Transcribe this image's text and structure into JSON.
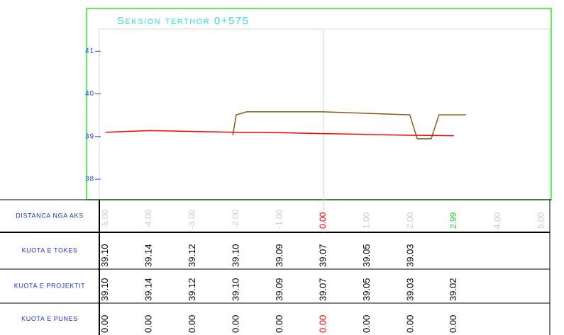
{
  "chart_data": {
    "type": "line",
    "title": "Seksion terthor 0+575",
    "xlim": [
      -5.14,
      5.19
    ],
    "ylim": [
      37.52,
      41.52
    ],
    "yticks": [
      38,
      39,
      40,
      41
    ],
    "xticks": [
      {
        "value": -5,
        "label": "-5.00"
      },
      {
        "value": -4,
        "label": "-4.00"
      },
      {
        "value": -3,
        "label": "-3.00"
      },
      {
        "value": -2,
        "label": "-2.00"
      },
      {
        "value": -1,
        "label": "-1.00"
      },
      {
        "value": 0,
        "label": "0.00"
      },
      {
        "value": 1,
        "label": "1.00"
      },
      {
        "value": 2,
        "label": "2.00"
      },
      {
        "value": 2.99,
        "label": "2.99"
      },
      {
        "value": 4,
        "label": "4.00"
      },
      {
        "value": 5,
        "label": "5.00"
      }
    ],
    "xtick_colors": [
      "#cccccc",
      "#cccccc",
      "#cccccc",
      "#cccccc",
      "#cccccc",
      "#ff0000",
      "#cccccc",
      "#cccccc",
      "#33cc33",
      "#cccccc",
      "#cccccc"
    ],
    "series": [
      {
        "color": "#8b5a14",
        "x": [
          -2.08,
          -2.0,
          -1.76,
          0,
          1.98,
          2.15,
          2.47,
          2.65,
          3.27
        ],
        "values": [
          39.03,
          39.51,
          39.58,
          39.58,
          39.51,
          38.95,
          38.95,
          39.51,
          39.51
        ]
      },
      {
        "color": "#ff0000",
        "x": [
          -5,
          -4,
          -3,
          -2,
          -1,
          0,
          1,
          2,
          2.99
        ],
        "values": [
          39.1,
          39.14,
          39.12,
          39.1,
          39.09,
          39.07,
          39.05,
          39.03,
          39.02
        ]
      }
    ]
  },
  "table": {
    "rows": [
      {
        "label": "DISTANCA NGA AKS"
      },
      {
        "label": "KUOTA E TOKES",
        "cells": [
          "39.10",
          "39.14",
          "39.12",
          "39.10",
          "39.09",
          "39.07",
          "39.05",
          "39.03",
          null,
          null,
          null
        ]
      },
      {
        "label": "KUOTA E PROJEKTIT",
        "cells": [
          "39.10",
          "39.14",
          "39.12",
          "39.10",
          "39.09",
          "39.07",
          "39.05",
          "39.03",
          "39.02",
          null,
          null
        ]
      },
      {
        "label": "KUOTA E PUNES",
        "cells": [
          "0.00",
          "0.00",
          "0.00",
          "0.00",
          "0.00",
          "0.00",
          "0.00",
          "0.00",
          "0.00",
          null,
          null
        ],
        "colors": [
          "#000000",
          "#000000",
          "#000000",
          "#000000",
          "#000000",
          "#ff0000",
          "#000000",
          "#000000",
          "#000000",
          "#000000",
          "#000000"
        ]
      }
    ]
  }
}
